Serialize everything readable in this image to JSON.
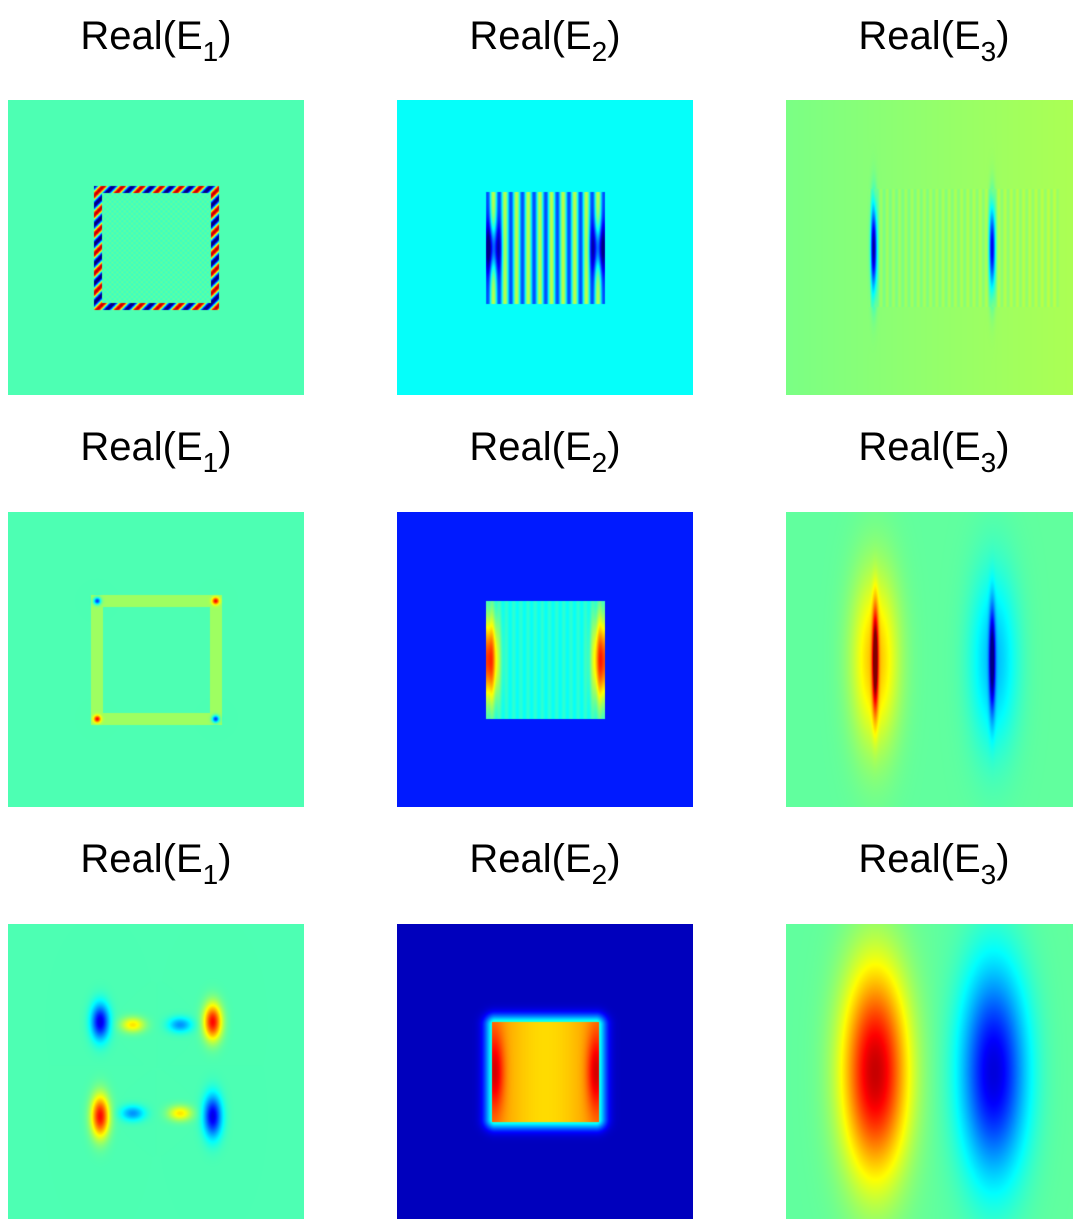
{
  "figure": {
    "panels": [
      {
        "title_main": "Real(E",
        "title_sub": "1",
        "title_close": ")",
        "colormap": "jet"
      },
      {
        "title_main": "Real(E",
        "title_sub": "2",
        "title_close": ")",
        "colormap": "jet"
      },
      {
        "title_main": "Real(E",
        "title_sub": "3",
        "title_close": ")",
        "colormap": "jet"
      },
      {
        "title_main": "Real(E",
        "title_sub": "1",
        "title_close": ")",
        "colormap": "jet"
      },
      {
        "title_main": "Real(E",
        "title_sub": "2",
        "title_close": ")",
        "colormap": "jet"
      },
      {
        "title_main": "Real(E",
        "title_sub": "3",
        "title_close": ")",
        "colormap": "jet"
      },
      {
        "title_main": "Real(E",
        "title_sub": "1",
        "title_close": ")",
        "colormap": "jet"
      },
      {
        "title_main": "Real(E",
        "title_sub": "2",
        "title_close": ")",
        "colormap": "jet"
      },
      {
        "title_main": "Real(E",
        "title_sub": "3",
        "title_close": ")",
        "colormap": "jet"
      }
    ]
  },
  "chart_data": [
    {
      "type": "heatmap",
      "title": "Real(E_1)",
      "colormap": "jet",
      "axes": "off",
      "background_value": 0.45
    },
    {
      "type": "heatmap",
      "title": "Real(E_2)",
      "colormap": "jet",
      "axes": "off",
      "background_value": 0.38
    },
    {
      "type": "heatmap",
      "title": "Real(E_3)",
      "colormap": "jet",
      "axes": "off",
      "background_value": 0.52
    },
    {
      "type": "heatmap",
      "title": "Real(E_1)",
      "colormap": "jet",
      "axes": "off",
      "background_value": 0.45
    },
    {
      "type": "heatmap",
      "title": "Real(E_2)",
      "colormap": "jet",
      "axes": "off",
      "background_value": 0.15
    },
    {
      "type": "heatmap",
      "title": "Real(E_3)",
      "colormap": "jet",
      "axes": "off",
      "background_value": 0.47
    },
    {
      "type": "heatmap",
      "title": "Real(E_1)",
      "colormap": "jet",
      "axes": "off",
      "background_value": 0.45
    },
    {
      "type": "heatmap",
      "title": "Real(E_2)",
      "colormap": "jet",
      "axes": "off",
      "background_value": 0.05
    },
    {
      "type": "heatmap",
      "title": "Real(E_3)",
      "colormap": "jet",
      "axes": "off",
      "background_value": 0.47
    }
  ]
}
